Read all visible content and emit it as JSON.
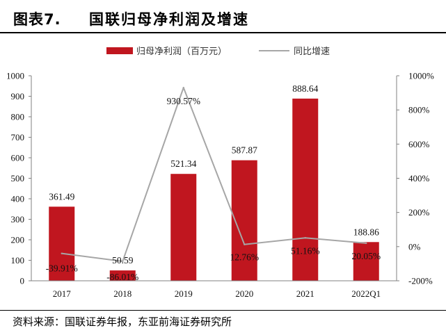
{
  "header": {
    "figure_label": "图表7.",
    "figure_title": "国联归母净利润及增速"
  },
  "footer": {
    "source": "资料来源：国联证券年报，东亚前海证券研究所"
  },
  "colors": {
    "bar": "#C0161F",
    "line": "#A6A6A6",
    "axis": "#808080"
  },
  "chart_data": {
    "type": "bar",
    "categories": [
      "2017",
      "2018",
      "2019",
      "2020",
      "2021",
      "2022Q1"
    ],
    "series": [
      {
        "name": "归母净利润（百万元）",
        "type": "bar",
        "axis": "left",
        "values": [
          361.49,
          50.59,
          521.34,
          587.87,
          888.64,
          188.86
        ],
        "labels": [
          "361.49",
          "50.59",
          "521.34",
          "587.87",
          "888.64",
          "188.86"
        ]
      },
      {
        "name": "同比增速",
        "type": "line",
        "axis": "right",
        "values": [
          -39.91,
          -86.01,
          930.57,
          12.76,
          51.16,
          20.05
        ],
        "labels": [
          "-39.91%",
          "-86.01%",
          "930.57%",
          "12.76%",
          "51.16%",
          "20.05%"
        ]
      }
    ],
    "y_left": {
      "lim": [
        0,
        1000
      ],
      "ticks": [
        0,
        100,
        200,
        300,
        400,
        500,
        600,
        700,
        800,
        900,
        1000
      ],
      "tick_labels": [
        "0",
        "100",
        "200",
        "300",
        "400",
        "500",
        "600",
        "700",
        "800",
        "900",
        "1000"
      ]
    },
    "y_right": {
      "lim": [
        -200,
        1000
      ],
      "ticks": [
        -200,
        0,
        200,
        400,
        600,
        800,
        1000
      ],
      "tick_labels": [
        "-200%",
        "0%",
        "200%",
        "400%",
        "600%",
        "800%",
        "1000%"
      ]
    },
    "legend_position": "top-center",
    "grid": false
  }
}
